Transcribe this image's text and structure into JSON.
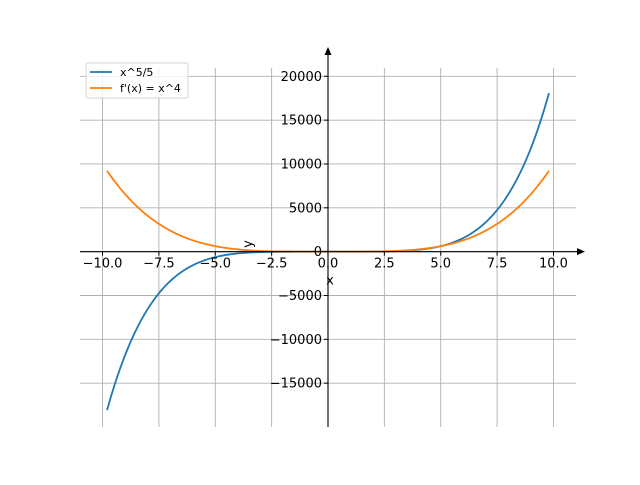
{
  "chart_data": {
    "type": "line",
    "xlabel": "x",
    "ylabel": "y",
    "xlim": [
      -11,
      11
    ],
    "ylim": [
      -20000,
      23000
    ],
    "xticks": [
      -10.0,
      -7.5,
      -5.0,
      -2.5,
      0.0,
      2.5,
      5.0,
      7.5,
      10.0
    ],
    "xtick_labels": [
      "−10.0",
      "−7.5",
      "−5.0",
      "−2.5",
      "0.0",
      "2.5",
      "5.0",
      "7.5",
      "10.0"
    ],
    "yticks": [
      -15000,
      -10000,
      -5000,
      0,
      5000,
      10000,
      15000,
      20000
    ],
    "ytick_labels": [
      "−15000",
      "−10000",
      "−5000",
      "0",
      "5000",
      "10000",
      "15000",
      "20000"
    ],
    "x_range": [
      -9.8,
      9.8
    ],
    "grid": true,
    "legend_position": "top-left",
    "series": [
      {
        "name": "x^5/5",
        "expression": "x^5/5",
        "color": "#1f77b4"
      },
      {
        "name": "f'(x) = x^4",
        "expression": "x^4",
        "color": "#ff7f0e"
      }
    ]
  }
}
